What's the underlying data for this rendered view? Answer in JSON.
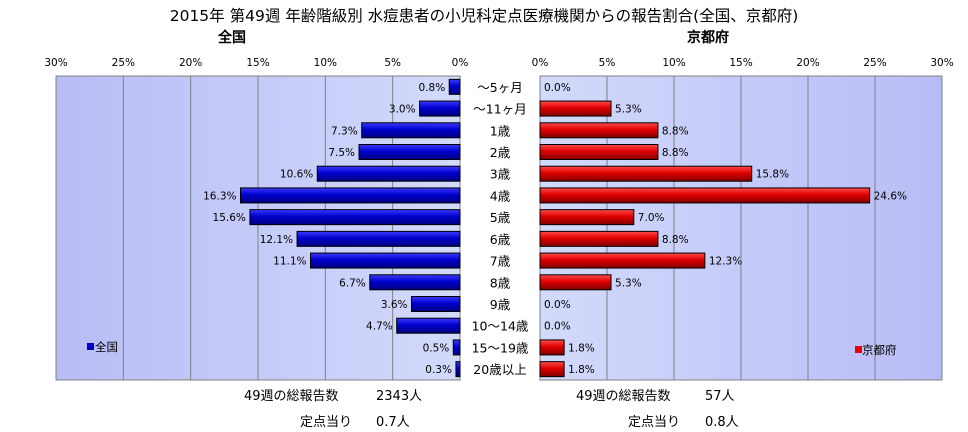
{
  "chart_data": {
    "type": "bar",
    "title": "2015年 第49週 年齢階級別 水痘患者の小児科定点医療機関からの報告割合(全国、京都府)",
    "categories": [
      "〜5ヶ月",
      "〜11ヶ月",
      "1歳",
      "2歳",
      "3歳",
      "4歳",
      "5歳",
      "6歳",
      "7歳",
      "8歳",
      "9歳",
      "10〜14歳",
      "15〜19歳",
      "20歳以上"
    ],
    "xlim": [
      0,
      30
    ],
    "ticks": [
      "30%",
      "25%",
      "20%",
      "15%",
      "10%",
      "5%",
      "0%"
    ],
    "ticks_right": [
      "0%",
      "5%",
      "10%",
      "15%",
      "20%",
      "25%",
      "30%"
    ],
    "grid": true,
    "legend_position": "bottom-left / bottom-right",
    "series": [
      {
        "name": "全国",
        "panel_title": "全国",
        "color": "#0000cc",
        "values": [
          0.8,
          3.0,
          7.3,
          7.5,
          10.6,
          16.3,
          15.6,
          12.1,
          11.1,
          6.7,
          3.6,
          4.7,
          0.5,
          0.3
        ],
        "labels": [
          "0.8%",
          "3.0%",
          "7.3%",
          "7.5%",
          "10.6%",
          "16.3%",
          "15.6%",
          "12.1%",
          "11.1%",
          "6.7%",
          "3.6%",
          "4.7%",
          "0.5%",
          "0.3%"
        ]
      },
      {
        "name": "京都府",
        "panel_title": "京都府",
        "color": "#ee0000",
        "values": [
          0.0,
          5.3,
          8.8,
          8.8,
          15.8,
          24.6,
          7.0,
          8.8,
          12.3,
          5.3,
          0.0,
          0.0,
          1.8,
          1.8
        ],
        "labels": [
          "0.0%",
          "5.3%",
          "8.8%",
          "8.8%",
          "15.8%",
          "24.6%",
          "7.0%",
          "8.8%",
          "12.3%",
          "5.3%",
          "0.0%",
          "0.0%",
          "1.8%",
          "1.8%"
        ]
      }
    ],
    "colors": {
      "panel_bg": "#c4c8fa",
      "grid": "#808080"
    }
  },
  "footer": {
    "left": {
      "total_label": "49週の総報告数",
      "total_value": "2343人",
      "per_label": "定点当り",
      "per_value": "0.7人"
    },
    "right": {
      "total_label": "49週の総報告数",
      "total_value": "57人",
      "per_label": "定点当り",
      "per_value": "0.8人"
    }
  }
}
